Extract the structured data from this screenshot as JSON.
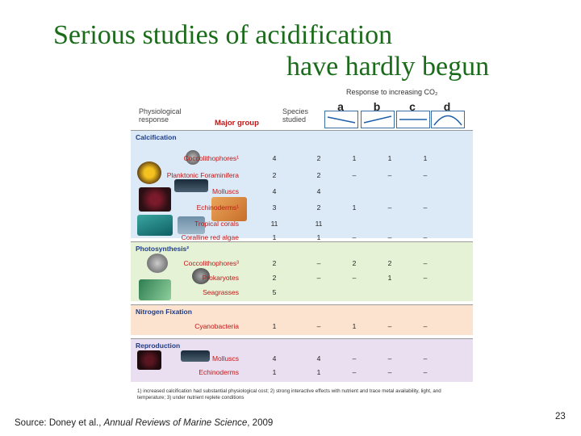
{
  "slide": {
    "title_line1": "Serious studies of acidification",
    "title_line2": "have hardly begun",
    "source_prefix": "Source: Doney et al., ",
    "source_journal": "Annual Reviews of Marine Science",
    "source_year": ", 2009",
    "page_number": "23"
  },
  "figure": {
    "header_physio": "Physiological response",
    "header_major": "Major group",
    "header_species": "Species studied",
    "response_title": "Response to increasing CO₂",
    "columns": [
      "a",
      "b",
      "c",
      "d"
    ],
    "sections": [
      {
        "title": "Calcification",
        "rows": [
          {
            "group": "Coccolithophores¹",
            "n": "4",
            "a": "2",
            "b": "1",
            "c": "1",
            "d": "1"
          },
          {
            "group": "Planktonic Foraminifera",
            "n": "2",
            "a": "2",
            "b": "–",
            "c": "–",
            "d": "–"
          },
          {
            "group": "Molluscs",
            "n": "4",
            "a": "4",
            "b": "",
            "c": "",
            "d": ""
          },
          {
            "group": "Echinoderms¹",
            "n": "3",
            "a": "2",
            "b": "1",
            "c": "–",
            "d": "–"
          },
          {
            "group": "Tropical corals",
            "n": "11",
            "a": "11",
            "b": "",
            "c": "",
            "d": ""
          },
          {
            "group": "Coralline red algae",
            "n": "1",
            "a": "1",
            "b": "–",
            "c": "–",
            "d": "–"
          }
        ]
      },
      {
        "title": "Photosynthesis²",
        "rows": [
          {
            "group": "Coccolithophores³",
            "n": "2",
            "a": "–",
            "b": "2",
            "c": "2",
            "d": "–"
          },
          {
            "group": "Prokaryotes",
            "n": "2",
            "a": "–",
            "b": "–",
            "c": "1",
            "d": "–"
          },
          {
            "group": "Seagrasses",
            "n": "5",
            "a": "",
            "b": "",
            "c": "",
            "d": ""
          }
        ]
      },
      {
        "title": "Nitrogen Fixation",
        "rows": [
          {
            "group": "Cyanobacteria",
            "n": "1",
            "a": "–",
            "b": "1",
            "c": "–",
            "d": "–"
          }
        ]
      },
      {
        "title": "Reproduction",
        "rows": [
          {
            "group": "Molluscs",
            "n": "4",
            "a": "4",
            "b": "–",
            "c": "–",
            "d": "–"
          },
          {
            "group": "Echinoderms",
            "n": "1",
            "a": "1",
            "b": "–",
            "c": "–",
            "d": "–"
          }
        ]
      }
    ],
    "footnote": "1) increased calcification had substantial physiological cost; 2) strong interactive effects with nutrient and trace metal availability, light, and temperature; 3) under nutrient replete conditions",
    "colors": {
      "calcification": "#dbeaf6",
      "photosynthesis": "#e5f2d6",
      "nitrogen": "#fbe3cf",
      "reproduction": "#eadff0",
      "title_green": "#1a6b1a",
      "group_red": "#c01818"
    }
  }
}
